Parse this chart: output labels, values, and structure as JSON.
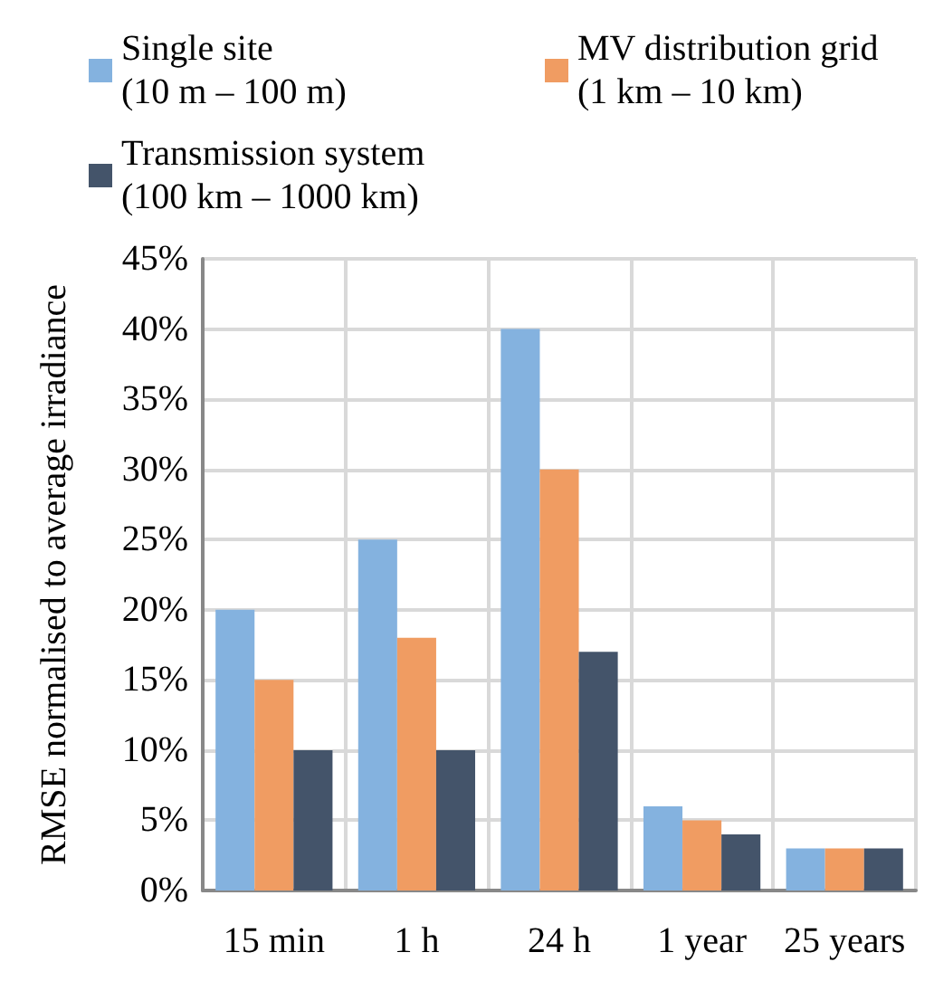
{
  "chart_data": {
    "type": "bar",
    "ylabel": "RMSE normalised to average irradiance",
    "categories": [
      "15 min",
      "1 h",
      "24 h",
      "1 year",
      "25 years"
    ],
    "series": [
      {
        "name": "Single site\n(10 m – 100 m)",
        "color": "#84b2df",
        "values": [
          20,
          25,
          40,
          6,
          3
        ]
      },
      {
        "name": "MV distribution grid\n(1 km – 10 km)",
        "color": "#f09c62",
        "values": [
          15,
          18,
          30,
          5,
          3
        ]
      },
      {
        "name": "Transmission system\n(100 km – 1000 km)",
        "color": "#44546a",
        "values": [
          10,
          10,
          17,
          4,
          3
        ]
      }
    ],
    "ylim": [
      0,
      45
    ],
    "yticks": [
      {
        "value": 0,
        "label": "0%"
      },
      {
        "value": 5,
        "label": "5%"
      },
      {
        "value": 10,
        "label": "10%"
      },
      {
        "value": 15,
        "label": "15%"
      },
      {
        "value": 20,
        "label": "20%"
      },
      {
        "value": 25,
        "label": "25%"
      },
      {
        "value": 30,
        "label": "30%"
      },
      {
        "value": 35,
        "label": "35%"
      },
      {
        "value": 40,
        "label": "40%"
      },
      {
        "value": 45,
        "label": "45%"
      }
    ],
    "grid": true,
    "legend": "top"
  }
}
